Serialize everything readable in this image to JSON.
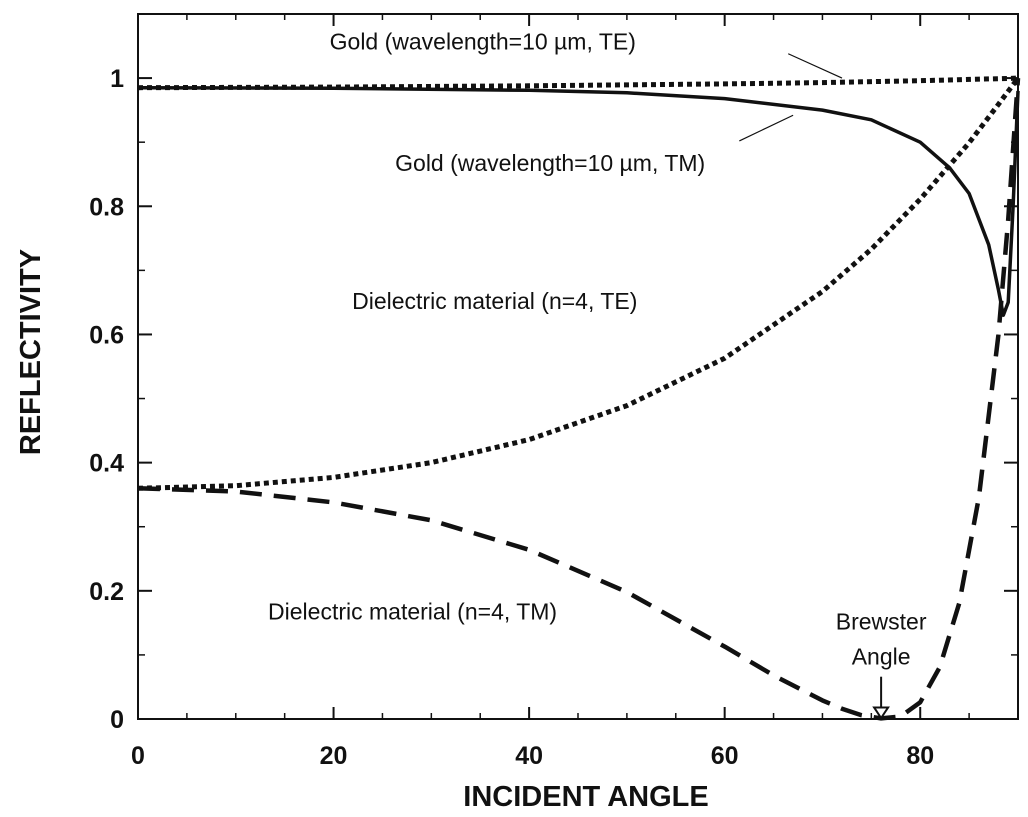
{
  "chart_data": {
    "type": "line",
    "title": "",
    "xlabel": "INCIDENT ANGLE",
    "ylabel": "REFLECTIVITY",
    "xlim": [
      0,
      90
    ],
    "ylim": [
      0,
      1.1
    ],
    "x_ticks": [
      0,
      20,
      40,
      60,
      80
    ],
    "x_tick_labels": [
      "0",
      "20",
      "40",
      "60",
      "80"
    ],
    "y_ticks": [
      0,
      0.2,
      0.4,
      0.6,
      0.8,
      1
    ],
    "y_tick_labels": [
      "0",
      "0.2",
      "0.4",
      "0.6",
      "0.8",
      "1"
    ],
    "grid": false,
    "legend": "none",
    "series": [
      {
        "name": "Gold (wavelength=10 µm, TE)",
        "style": "dotted",
        "x": [
          0,
          20,
          40,
          60,
          70,
          80,
          85,
          88,
          90
        ],
        "y": [
          0.985,
          0.986,
          0.988,
          0.991,
          0.993,
          0.996,
          0.998,
          0.999,
          1.0
        ]
      },
      {
        "name": "Gold (wavelength=10 µm, TM)",
        "style": "solid",
        "x": [
          0,
          20,
          40,
          50,
          60,
          70,
          75,
          80,
          83,
          85,
          87,
          88,
          88.5,
          89,
          89.5,
          90
        ],
        "y": [
          0.985,
          0.984,
          0.981,
          0.977,
          0.968,
          0.95,
          0.935,
          0.9,
          0.86,
          0.82,
          0.74,
          0.67,
          0.63,
          0.65,
          0.8,
          0.98
        ]
      },
      {
        "name": "Dielectric material (n=4, TE)",
        "style": "dotted",
        "x": [
          0,
          10,
          20,
          30,
          40,
          50,
          60,
          70,
          75,
          80,
          85,
          88,
          90
        ],
        "y": [
          0.36,
          0.364,
          0.377,
          0.4,
          0.436,
          0.489,
          0.563,
          0.667,
          0.733,
          0.811,
          0.899,
          0.959,
          1.0
        ]
      },
      {
        "name": "Dielectric material (n=4, TM)",
        "style": "dashed",
        "x": [
          0,
          10,
          20,
          30,
          40,
          50,
          60,
          65,
          70,
          72,
          74,
          76,
          78,
          80,
          82,
          84,
          86,
          88,
          89,
          90
        ],
        "y": [
          0.36,
          0.355,
          0.338,
          0.31,
          0.264,
          0.198,
          0.113,
          0.068,
          0.029,
          0.016,
          0.006,
          0.001,
          0.004,
          0.026,
          0.081,
          0.181,
          0.346,
          0.599,
          0.779,
          1.0
        ]
      }
    ],
    "annotations": [
      {
        "text": "Gold (wavelength=10 µm, TE)",
        "x": 19.6,
        "y": 1.045
      },
      {
        "text": "Gold (wavelength=10 µm, TM)",
        "x": 26.3,
        "y": 0.855
      },
      {
        "text": "Dielectric material (n=4, TE)",
        "x": 21.9,
        "y": 0.64
      },
      {
        "text": "Dielectric material (n=4, TM)",
        "x": 13.3,
        "y": 0.155
      },
      {
        "text": "Brewster",
        "x": 76.8,
        "y": 0.14
      },
      {
        "text": "Angle",
        "x": 76.8,
        "y": 0.085
      }
    ],
    "brewster_angle": 76
  }
}
